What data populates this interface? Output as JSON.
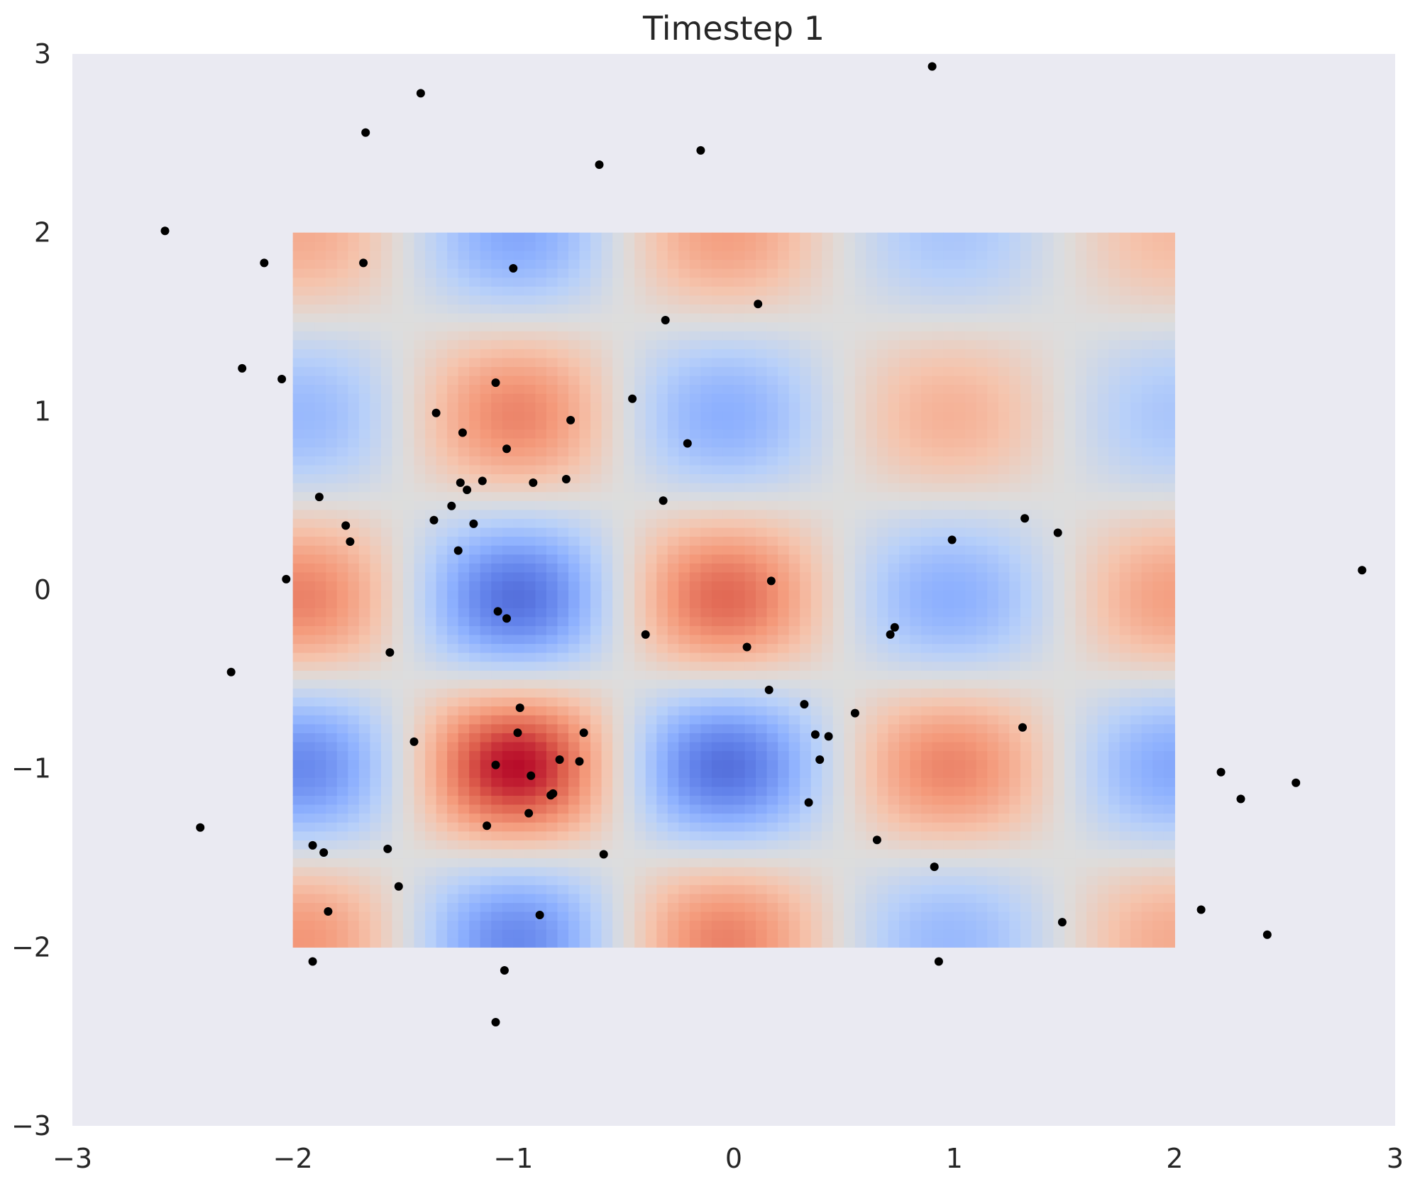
{
  "chart_data": {
    "type": "heatmap",
    "title": "Timestep 1",
    "xlabel": "",
    "ylabel": "",
    "xlim": [
      -3,
      3
    ],
    "ylim": [
      -3,
      3
    ],
    "xticks": [
      -3,
      -2,
      -1,
      0,
      1,
      2,
      3
    ],
    "yticks": [
      -3,
      -2,
      -1,
      0,
      1,
      2,
      3
    ],
    "xtick_labels": [
      "−3",
      "−2",
      "−1",
      "0",
      "1",
      "2",
      "3"
    ],
    "ytick_labels": [
      "−3",
      "−2",
      "−1",
      "0",
      "1",
      "2",
      "3"
    ],
    "grid": false,
    "background_color": "#eaeaf2",
    "heatmap": {
      "extent_x": [
        -2,
        2
      ],
      "extent_y": [
        -2,
        2
      ],
      "colormap": "coolwarm",
      "colors": {
        "low": "#3b4cc0",
        "mid": "#dddddd",
        "high": "#b40426"
      },
      "field": "f(x,y) = A(x)·B(y)·cos(πx)·cos(πy) + 0.25",
      "cells_x": 80,
      "cells_y": 80
    },
    "scatter": {
      "color": "#000000",
      "points": [
        [
          0.9,
          2.93
        ],
        [
          -1.42,
          2.78
        ],
        [
          -1.67,
          2.56
        ],
        [
          -0.15,
          2.46
        ],
        [
          -0.61,
          2.38
        ],
        [
          -2.58,
          2.01
        ],
        [
          -2.13,
          1.83
        ],
        [
          -1.68,
          1.83
        ],
        [
          -1.0,
          1.8
        ],
        [
          0.11,
          1.6
        ],
        [
          -0.31,
          1.51
        ],
        [
          -2.23,
          1.24
        ],
        [
          -2.05,
          1.18
        ],
        [
          -1.08,
          1.16
        ],
        [
          -0.46,
          1.07
        ],
        [
          -1.35,
          0.99
        ],
        [
          -0.74,
          0.95
        ],
        [
          -1.23,
          0.88
        ],
        [
          -0.21,
          0.82
        ],
        [
          -1.03,
          0.79
        ],
        [
          -0.76,
          0.62
        ],
        [
          -0.91,
          0.6
        ],
        [
          -1.14,
          0.61
        ],
        [
          -1.24,
          0.6
        ],
        [
          -1.21,
          0.56
        ],
        [
          -1.88,
          0.52
        ],
        [
          -0.32,
          0.5
        ],
        [
          -1.28,
          0.47
        ],
        [
          -1.36,
          0.39
        ],
        [
          -1.18,
          0.37
        ],
        [
          -1.76,
          0.36
        ],
        [
          1.32,
          0.4
        ],
        [
          1.47,
          0.32
        ],
        [
          0.99,
          0.28
        ],
        [
          -1.74,
          0.27
        ],
        [
          -1.25,
          0.22
        ],
        [
          2.85,
          0.11
        ],
        [
          -2.03,
          0.06
        ],
        [
          0.17,
          0.05
        ],
        [
          -1.07,
          -0.12
        ],
        [
          -1.03,
          -0.16
        ],
        [
          0.73,
          -0.21
        ],
        [
          0.71,
          -0.25
        ],
        [
          -0.4,
          -0.25
        ],
        [
          0.06,
          -0.32
        ],
        [
          -1.56,
          -0.35
        ],
        [
          -2.28,
          -0.46
        ],
        [
          0.16,
          -0.56
        ],
        [
          0.32,
          -0.64
        ],
        [
          -0.97,
          -0.66
        ],
        [
          0.55,
          -0.69
        ],
        [
          1.31,
          -0.77
        ],
        [
          -0.68,
          -0.8
        ],
        [
          -0.98,
          -0.8
        ],
        [
          0.37,
          -0.81
        ],
        [
          0.43,
          -0.82
        ],
        [
          -1.45,
          -0.85
        ],
        [
          -0.79,
          -0.95
        ],
        [
          -0.7,
          -0.96
        ],
        [
          0.39,
          -0.95
        ],
        [
          -1.08,
          -0.98
        ],
        [
          -0.92,
          -1.04
        ],
        [
          2.21,
          -1.02
        ],
        [
          2.55,
          -1.08
        ],
        [
          -0.82,
          -1.14
        ],
        [
          -0.83,
          -1.15
        ],
        [
          2.3,
          -1.17
        ],
        [
          0.34,
          -1.19
        ],
        [
          -0.93,
          -1.25
        ],
        [
          -1.12,
          -1.32
        ],
        [
          -2.42,
          -1.33
        ],
        [
          0.65,
          -1.4
        ],
        [
          -1.91,
          -1.43
        ],
        [
          -1.57,
          -1.45
        ],
        [
          -1.86,
          -1.47
        ],
        [
          -0.59,
          -1.48
        ],
        [
          0.91,
          -1.55
        ],
        [
          -1.52,
          -1.66
        ],
        [
          2.12,
          -1.79
        ],
        [
          -1.84,
          -1.8
        ],
        [
          -0.88,
          -1.82
        ],
        [
          1.49,
          -1.86
        ],
        [
          2.42,
          -1.93
        ],
        [
          -1.91,
          -2.08
        ],
        [
          0.93,
          -2.08
        ],
        [
          -1.04,
          -2.13
        ],
        [
          -1.08,
          -2.42
        ]
      ]
    }
  }
}
